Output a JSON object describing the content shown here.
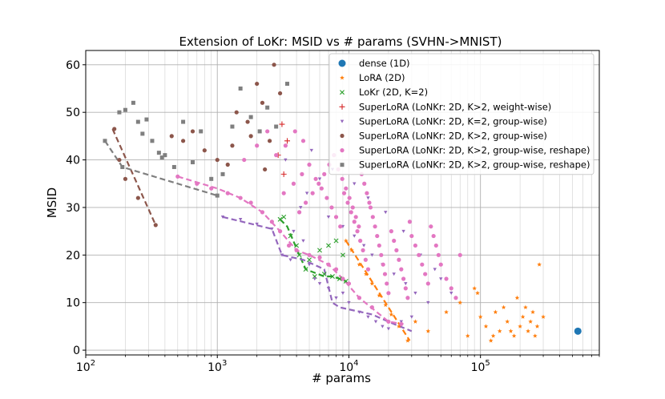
{
  "chart_data": {
    "type": "scatter",
    "title": "Extension of LoKr: MSID vs # params (SVHN->MNIST)",
    "xlabel": "# params",
    "ylabel": "MSID",
    "xscale": "log",
    "xlim": [
      100,
      800000
    ],
    "ylim": [
      -1,
      63
    ],
    "grid": true,
    "x_ticks": [
      {
        "value": 100,
        "base": "10",
        "exp": "2"
      },
      {
        "value": 1000,
        "base": "10",
        "exp": "3"
      },
      {
        "value": 10000,
        "base": "10",
        "exp": "4"
      },
      {
        "value": 100000,
        "base": "10",
        "exp": "5"
      }
    ],
    "y_ticks": [
      0,
      10,
      20,
      30,
      40,
      50,
      60
    ],
    "legend_position": "top-right",
    "series": [
      {
        "name": "dense (1D)",
        "color": "#1f77b4",
        "marker": "circle-large",
        "points": [
          [
            550000,
            4
          ]
        ]
      },
      {
        "name": "LoRA (2D)",
        "color": "#ff7f0e",
        "marker": "star",
        "points": [
          [
            9500,
            23
          ],
          [
            10500,
            21
          ],
          [
            12000,
            18
          ],
          [
            13500,
            16
          ],
          [
            15000,
            14
          ],
          [
            17000,
            11.5
          ],
          [
            19000,
            9.5
          ],
          [
            21000,
            7.5
          ],
          [
            24000,
            5
          ],
          [
            28000,
            2
          ],
          [
            32000,
            6
          ],
          [
            40000,
            4
          ],
          [
            55000,
            8
          ],
          [
            70000,
            10
          ],
          [
            80000,
            3
          ],
          [
            90000,
            13
          ],
          [
            95000,
            12
          ],
          [
            100000,
            7
          ],
          [
            110000,
            5
          ],
          [
            125000,
            3
          ],
          [
            130000,
            8
          ],
          [
            140000,
            4
          ],
          [
            150000,
            9
          ],
          [
            160000,
            6
          ],
          [
            170000,
            4
          ],
          [
            180000,
            3
          ],
          [
            190000,
            11
          ],
          [
            200000,
            5
          ],
          [
            210000,
            7
          ],
          [
            220000,
            9
          ],
          [
            230000,
            4
          ],
          [
            240000,
            6
          ],
          [
            250000,
            8
          ],
          [
            260000,
            3
          ],
          [
            270000,
            5
          ],
          [
            280000,
            18
          ],
          [
            300000,
            7
          ],
          [
            120000,
            2
          ]
        ],
        "line_x": [
          9500,
          29000
        ],
        "line_y": [
          23,
          2
        ]
      },
      {
        "name": "LoKr (2D, K=2)",
        "color": "#2ca02c",
        "marker": "x",
        "points": [
          [
            3000,
            27.5
          ],
          [
            3200,
            28
          ],
          [
            3600,
            24
          ],
          [
            4200,
            20
          ],
          [
            4700,
            17
          ],
          [
            5500,
            15.5
          ],
          [
            6500,
            16
          ],
          [
            7500,
            15.5
          ],
          [
            8500,
            15
          ],
          [
            9500,
            14.5
          ],
          [
            4000,
            22
          ],
          [
            5000,
            19
          ],
          [
            6000,
            21
          ],
          [
            7000,
            22
          ],
          [
            8000,
            23
          ],
          [
            9000,
            20
          ]
        ],
        "line_x": [
          3000,
          3400,
          4200,
          4700,
          6500,
          7500,
          8500,
          9500
        ],
        "line_y": [
          27.5,
          26,
          20,
          17,
          15.5,
          15.5,
          15,
          14.5
        ]
      },
      {
        "name": "SuperLoRA (LoNKr: 2D, K>2, weight-wise)",
        "color": "#d62728",
        "marker": "plus",
        "points": [
          [
            3200,
            37
          ],
          [
            3100,
            47.5
          ],
          [
            3400,
            44
          ],
          [
            2900,
            41
          ]
        ]
      },
      {
        "name": "SuperLoRA (LoNKr: 2D, K=2, group-wise)",
        "color": "#9467bd",
        "marker": "triangle-down",
        "points": [
          [
            1100,
            28
          ],
          [
            1500,
            27.5
          ],
          [
            2000,
            26.5
          ],
          [
            2600,
            25.5
          ],
          [
            3100,
            20
          ],
          [
            3600,
            19
          ],
          [
            4000,
            21
          ],
          [
            4500,
            23
          ],
          [
            5000,
            18
          ],
          [
            5500,
            15
          ],
          [
            6000,
            14
          ],
          [
            7000,
            13
          ],
          [
            8000,
            11
          ],
          [
            9000,
            12
          ],
          [
            10000,
            10
          ],
          [
            12000,
            8
          ],
          [
            14000,
            7
          ],
          [
            16000,
            6
          ],
          [
            18000,
            5
          ],
          [
            20000,
            4.5
          ],
          [
            25000,
            6
          ],
          [
            30000,
            7
          ],
          [
            3800,
            25
          ],
          [
            4300,
            30
          ],
          [
            4800,
            33
          ],
          [
            6000,
            36
          ],
          [
            7000,
            28
          ],
          [
            9000,
            26
          ],
          [
            11000,
            24
          ],
          [
            13000,
            22
          ],
          [
            15000,
            20
          ],
          [
            18000,
            18
          ],
          [
            22000,
            16
          ],
          [
            27000,
            14
          ],
          [
            32000,
            12
          ],
          [
            40000,
            10
          ],
          [
            50000,
            15
          ],
          [
            60000,
            12
          ],
          [
            3300,
            40
          ],
          [
            5200,
            42
          ],
          [
            7500,
            38
          ],
          [
            11000,
            35
          ],
          [
            14000,
            32
          ],
          [
            19000,
            29
          ],
          [
            26000,
            25
          ],
          [
            35000,
            20
          ],
          [
            45000,
            17
          ]
        ],
        "line_x": [
          1100,
          2600,
          3100,
          4500,
          6500,
          7500,
          8500,
          15000,
          22000,
          30000
        ],
        "line_y": [
          28,
          25.5,
          20,
          19,
          17,
          10,
          9,
          7.5,
          5.5,
          4
        ]
      },
      {
        "name": "SuperLoRA (LoNKr: 2D, K>2, group-wise)",
        "color": "#8c564b",
        "marker": "circle",
        "points": [
          [
            165,
            46.5
          ],
          [
            180,
            40
          ],
          [
            200,
            36
          ],
          [
            250,
            32
          ],
          [
            340,
            26.3
          ],
          [
            450,
            45
          ],
          [
            550,
            44
          ],
          [
            650,
            46
          ],
          [
            800,
            42
          ],
          [
            1000,
            40
          ],
          [
            1200,
            39
          ],
          [
            1400,
            50
          ],
          [
            1700,
            48
          ],
          [
            2000,
            56
          ],
          [
            2200,
            52
          ],
          [
            2500,
            44
          ],
          [
            2700,
            60
          ],
          [
            3000,
            54
          ],
          [
            2300,
            38
          ],
          [
            1800,
            45
          ],
          [
            1300,
            43
          ]
        ],
        "line_x": [
          160,
          340
        ],
        "line_y": [
          46.5,
          26.3
        ]
      },
      {
        "name": "SuperLoRA (LoNKr: 2D, K>2, group-wise, reshape)",
        "color": "#e377c2",
        "marker": "circle",
        "points": [
          [
            500,
            36.5
          ],
          [
            700,
            35
          ],
          [
            900,
            34
          ],
          [
            1200,
            33
          ],
          [
            1500,
            32
          ],
          [
            1800,
            31
          ],
          [
            2200,
            29
          ],
          [
            2600,
            27
          ],
          [
            3000,
            25
          ],
          [
            3500,
            22
          ],
          [
            4000,
            21
          ],
          [
            5000,
            20
          ],
          [
            6000,
            19.5
          ],
          [
            7000,
            18
          ],
          [
            8000,
            17
          ],
          [
            9000,
            15
          ],
          [
            10000,
            14
          ],
          [
            12000,
            11
          ],
          [
            15000,
            9
          ],
          [
            20000,
            6
          ],
          [
            25000,
            5.5
          ],
          [
            3200,
            33
          ],
          [
            3800,
            35
          ],
          [
            4400,
            37
          ],
          [
            5000,
            39
          ],
          [
            5600,
            36
          ],
          [
            6200,
            34
          ],
          [
            6800,
            32
          ],
          [
            7400,
            30
          ],
          [
            8000,
            28
          ],
          [
            8600,
            26
          ],
          [
            9200,
            33
          ],
          [
            9800,
            31
          ],
          [
            10400,
            29
          ],
          [
            11000,
            27
          ],
          [
            11600,
            25
          ],
          [
            12200,
            23
          ],
          [
            12800,
            21
          ],
          [
            13400,
            19
          ],
          [
            14000,
            17
          ],
          [
            14600,
            30
          ],
          [
            15200,
            28
          ],
          [
            15800,
            26
          ],
          [
            16400,
            24
          ],
          [
            17000,
            22
          ],
          [
            17600,
            20
          ],
          [
            18200,
            18
          ],
          [
            18800,
            16
          ],
          [
            19400,
            14
          ],
          [
            20000,
            12
          ],
          [
            21000,
            25
          ],
          [
            22000,
            23
          ],
          [
            23000,
            21
          ],
          [
            24000,
            19
          ],
          [
            25000,
            17
          ],
          [
            26000,
            15
          ],
          [
            27000,
            13
          ],
          [
            28000,
            11
          ],
          [
            29000,
            27
          ],
          [
            30000,
            24
          ],
          [
            32000,
            22
          ],
          [
            34000,
            20
          ],
          [
            36000,
            18
          ],
          [
            38000,
            16
          ],
          [
            40000,
            14
          ],
          [
            42000,
            26
          ],
          [
            44000,
            24
          ],
          [
            46000,
            22
          ],
          [
            48000,
            20
          ],
          [
            50000,
            18
          ],
          [
            55000,
            15
          ],
          [
            60000,
            13
          ],
          [
            65000,
            11
          ],
          [
            70000,
            20
          ],
          [
            4200,
            29
          ],
          [
            4700,
            31
          ],
          [
            5300,
            33
          ],
          [
            5900,
            35
          ],
          [
            6500,
            37
          ],
          [
            7100,
            39
          ],
          [
            7700,
            41
          ],
          [
            8300,
            38
          ],
          [
            8900,
            36
          ],
          [
            9500,
            34
          ],
          [
            10100,
            32
          ],
          [
            10700,
            30
          ],
          [
            11300,
            28
          ],
          [
            11900,
            26
          ],
          [
            12500,
            37
          ],
          [
            13100,
            35
          ],
          [
            13700,
            33
          ],
          [
            14300,
            31
          ],
          [
            2800,
            41
          ],
          [
            3300,
            43
          ],
          [
            3900,
            46
          ],
          [
            4500,
            44
          ],
          [
            1600,
            40
          ],
          [
            2000,
            43
          ],
          [
            2400,
            46
          ]
        ],
        "line_x": [
          500,
          1000,
          1500,
          2200,
          3000,
          4000,
          5000,
          7000,
          9000,
          12000,
          20000,
          26000
        ],
        "line_y": [
          36.5,
          34,
          32,
          29,
          25,
          21,
          20,
          18,
          15,
          11,
          6,
          5.5
        ]
      },
      {
        "name": "SuperLoRA (LoNKr: 2D, K>2, group-wise, reshape)",
        "color": "#7f7f7f",
        "marker": "square",
        "points": [
          [
            140,
            44
          ],
          [
            190,
            38.5
          ],
          [
            180,
            50
          ],
          [
            200,
            50.5
          ],
          [
            230,
            52
          ],
          [
            250,
            48
          ],
          [
            270,
            45.5
          ],
          [
            290,
            48.5
          ],
          [
            320,
            44
          ],
          [
            360,
            41.5
          ],
          [
            380,
            40.5
          ],
          [
            470,
            38.5
          ],
          [
            650,
            39.5
          ],
          [
            750,
            46
          ],
          [
            900,
            36
          ],
          [
            1000,
            32.5
          ],
          [
            1100,
            37
          ],
          [
            1300,
            47
          ],
          [
            1500,
            55
          ],
          [
            1800,
            49
          ],
          [
            2100,
            46
          ],
          [
            2400,
            51
          ],
          [
            2800,
            47
          ],
          [
            3400,
            56
          ],
          [
            400,
            41
          ],
          [
            550,
            48
          ]
        ],
        "line_x": [
          140,
          190,
          1000
        ],
        "line_y": [
          44,
          38.5,
          32.5
        ]
      }
    ]
  }
}
